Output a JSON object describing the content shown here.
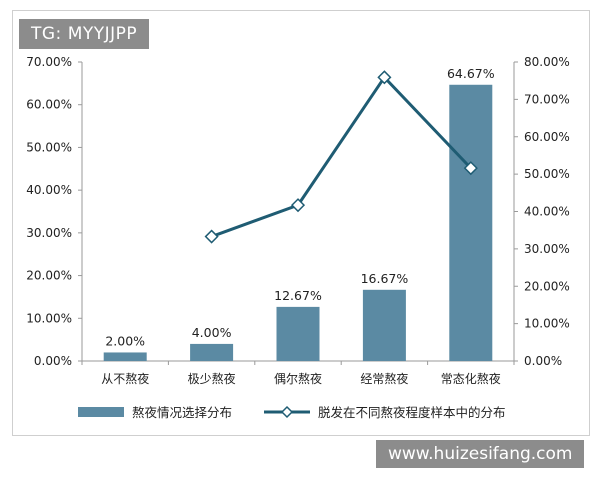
{
  "watermark_top": "TG: MYYJJPP",
  "watermark_bottom": "www.huizesifang.com",
  "chart_data": {
    "type": "bar",
    "title": "",
    "xlabel": "",
    "ylabel": "",
    "categories": [
      "从不熬夜",
      "极少熬夜",
      "偶尔熬夜",
      "经常熬夜",
      "常态化熬夜"
    ],
    "series": [
      {
        "name": "熬夜情况选择分布",
        "type": "bar",
        "axis": "left",
        "values": [
          2.0,
          4.0,
          12.67,
          16.67,
          64.67
        ],
        "data_labels": [
          "2.00%",
          "4.00%",
          "12.67%",
          "16.67%",
          "64.67%"
        ],
        "color": "#5b8aa3"
      },
      {
        "name": "脱发在不同熬夜程度样本中的分布",
        "type": "line",
        "axis": "right",
        "values": [
          null,
          33.3,
          41.7,
          75.9,
          51.6
        ],
        "color": "#1f5c73"
      }
    ],
    "y_left": {
      "ylim": [
        0,
        70
      ],
      "ticks": [
        0,
        10,
        20,
        30,
        40,
        50,
        60,
        70
      ],
      "tick_labels": [
        "0.00%",
        "10.00%",
        "20.00%",
        "30.00%",
        "40.00%",
        "50.00%",
        "60.00%",
        "70.00%"
      ]
    },
    "y_right": {
      "ylim": [
        0,
        80
      ],
      "ticks": [
        0,
        10,
        20,
        30,
        40,
        50,
        60,
        70,
        80
      ],
      "tick_labels": [
        "0.00%",
        "10.00%",
        "20.00%",
        "30.00%",
        "40.00%",
        "50.00%",
        "60.00%",
        "70.00%",
        "80.00%"
      ]
    },
    "grid": false,
    "legend_position": "bottom"
  }
}
